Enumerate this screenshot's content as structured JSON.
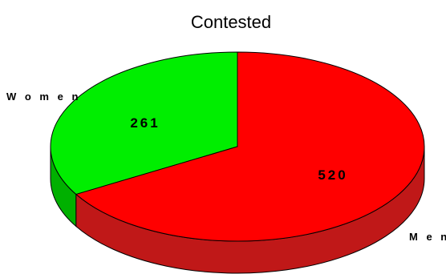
{
  "chart_data": {
    "type": "pie",
    "title": "Contested",
    "categories": [
      "Women",
      "Men"
    ],
    "category_labels": [
      "W o m e n",
      "M e n"
    ],
    "values": [
      261,
      520
    ],
    "value_labels": [
      "261",
      "520"
    ],
    "colors": [
      "#00ee00",
      "#ff0000"
    ],
    "side_colors": [
      "#00b000",
      "#c01818"
    ],
    "legend": "none",
    "three_d": true
  }
}
